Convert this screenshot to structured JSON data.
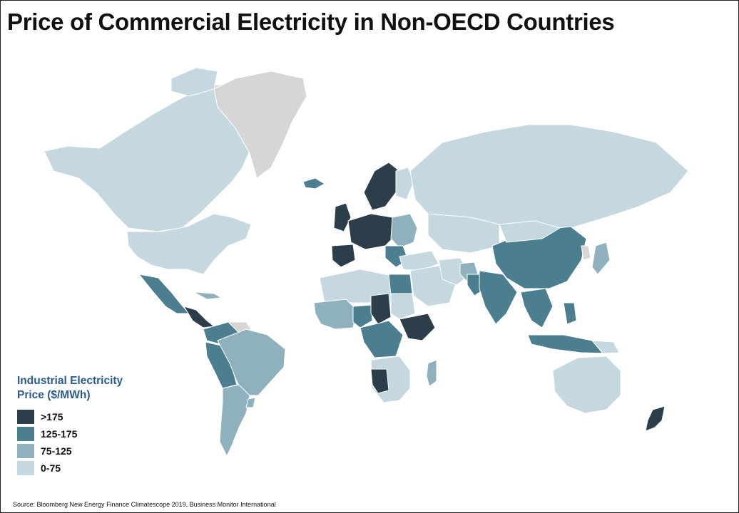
{
  "title": "Price of Commercial Electricity in Non-OECD Countries",
  "legend": {
    "title_line1": "Industrial Electricity",
    "title_line2": "Price ($/MWh)",
    "items": [
      {
        "label": ">175",
        "color": "#2c3e4a"
      },
      {
        "label": "125-175",
        "color": "#4b7f8f"
      },
      {
        "label": "75-125",
        "color": "#8fb0bd"
      },
      {
        "label": "0-75",
        "color": "#c5d8df"
      }
    ]
  },
  "no_data_color": "#d6d6d6",
  "source": "Source: Bloomberg New Energy Finance Climatescope 2019, Business Monitor International"
}
